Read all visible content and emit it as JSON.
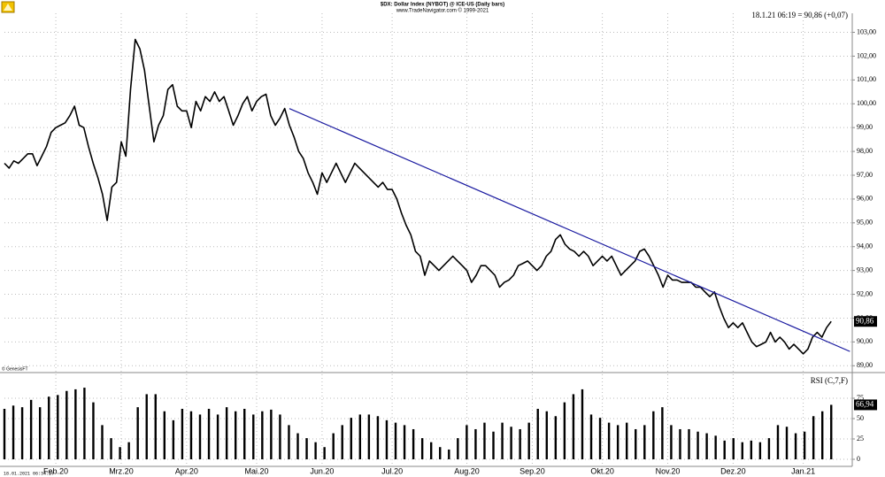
{
  "chart_data": [
    {
      "type": "line",
      "title": "$DX: Dollar Index (NYBOT) @ ICE-US  (Daily bars)",
      "subtitle": "www.TradeNavigator.com © 1999-2021",
      "info": "18.1.21 06:19 = 90,86 (+0,07)",
      "source_note": "© GenesisFT",
      "timestamp": "18.01.2021 06:34:27",
      "color": "#000000",
      "values": [
        97.5,
        97.3,
        97.6,
        97.5,
        97.7,
        97.9,
        97.9,
        97.4,
        97.8,
        98.2,
        98.8,
        99.0,
        99.1,
        99.2,
        99.5,
        99.9,
        99.1,
        99.0,
        98.2,
        97.5,
        96.9,
        96.2,
        95.1,
        96.5,
        96.7,
        98.4,
        97.8,
        100.6,
        102.7,
        102.3,
        101.4,
        99.9,
        98.4,
        99.1,
        99.5,
        100.6,
        100.8,
        99.9,
        99.7,
        99.7,
        99.0,
        100.1,
        99.7,
        100.3,
        100.1,
        100.5,
        100.1,
        100.3,
        99.7,
        99.1,
        99.5,
        100.0,
        100.3,
        99.7,
        100.1,
        100.3,
        100.4,
        99.5,
        99.1,
        99.4,
        99.8,
        99.1,
        98.6,
        98.0,
        97.7,
        97.1,
        96.7,
        96.2,
        97.1,
        96.7,
        97.1,
        97.5,
        97.1,
        96.7,
        97.1,
        97.5,
        97.3,
        97.1,
        96.9,
        96.7,
        96.5,
        96.7,
        96.4,
        96.4,
        96.0,
        95.4,
        94.9,
        94.5,
        93.8,
        93.6,
        92.8,
        93.4,
        93.2,
        93.0,
        93.2,
        93.4,
        93.6,
        93.4,
        93.2,
        93.0,
        92.5,
        92.8,
        93.2,
        93.2,
        93.0,
        92.8,
        92.3,
        92.5,
        92.6,
        92.8,
        93.2,
        93.3,
        93.4,
        93.2,
        93.0,
        93.2,
        93.6,
        93.8,
        94.3,
        94.5,
        94.1,
        93.9,
        93.8,
        93.6,
        93.8,
        93.6,
        93.2,
        93.4,
        93.6,
        93.4,
        93.6,
        93.2,
        92.8,
        93.0,
        93.2,
        93.4,
        93.8,
        93.9,
        93.6,
        93.2,
        92.8,
        92.3,
        92.8,
        92.6,
        92.6,
        92.5,
        92.5,
        92.5,
        92.3,
        92.3,
        92.1,
        91.9,
        92.1,
        91.5,
        91.0,
        90.6,
        90.8,
        90.6,
        90.8,
        90.4,
        90.0,
        89.8,
        89.9,
        90.0,
        90.4,
        90.0,
        90.2,
        90.0,
        89.7,
        89.9,
        89.7,
        89.5,
        89.7,
        90.2,
        90.4,
        90.2,
        90.6,
        90.86
      ],
      "last_value_label": "90,86",
      "trendline": {
        "x": [
          61,
          181
        ],
        "values": [
          99.8,
          89.6
        ],
        "color": "#1a1aa0"
      },
      "xlim": [
        0,
        181.5
      ],
      "xticks": [
        {
          "value": 11,
          "label": "Feb.20"
        },
        {
          "value": 25,
          "label": "Mrz.20"
        },
        {
          "value": 39,
          "label": "Apr.20"
        },
        {
          "value": 54,
          "label": "Mai.20"
        },
        {
          "value": 68,
          "label": "Jun.20"
        },
        {
          "value": 83,
          "label": "Jul.20"
        },
        {
          "value": 99,
          "label": "Aug.20"
        },
        {
          "value": 113,
          "label": "Sep.20"
        },
        {
          "value": 128,
          "label": "Okt.20"
        },
        {
          "value": 142,
          "label": "Nov.20"
        },
        {
          "value": 156,
          "label": "Dez.20"
        },
        {
          "value": 171,
          "label": "Jan.21"
        }
      ],
      "ylim": [
        88.75,
        103.8
      ],
      "yticks": [
        {
          "value": 89,
          "label": "89,00"
        },
        {
          "value": 90,
          "label": "90,00"
        },
        {
          "value": 91,
          "label": "91,00"
        },
        {
          "value": 92,
          "label": "92,00"
        },
        {
          "value": 93,
          "label": "93,00"
        },
        {
          "value": 94,
          "label": "94,00"
        },
        {
          "value": 95,
          "label": "95,00"
        },
        {
          "value": 96,
          "label": "96,00"
        },
        {
          "value": 97,
          "label": "97,00"
        },
        {
          "value": 98,
          "label": "98,00"
        },
        {
          "value": 99,
          "label": "99,00"
        },
        {
          "value": 100,
          "label": "100,00"
        },
        {
          "value": 101,
          "label": "101,00"
        },
        {
          "value": 102,
          "label": "102,00"
        },
        {
          "value": 103,
          "label": "103,00"
        }
      ],
      "grid": true
    },
    {
      "type": "bar",
      "title": "RSI (C,7,F)",
      "color": "#000000",
      "values": [
        62,
        66,
        64,
        73,
        64,
        77,
        79,
        84,
        86,
        88,
        70,
        42,
        26,
        15,
        21,
        64,
        80,
        80,
        59,
        48,
        62,
        59,
        55,
        62,
        55,
        64,
        59,
        62,
        55,
        59,
        61,
        55,
        42,
        32,
        26,
        21,
        15,
        32,
        42,
        51,
        55,
        55,
        53,
        48,
        45,
        42,
        37,
        26,
        21,
        15,
        12,
        26,
        42,
        37,
        45,
        34,
        45,
        40,
        37,
        45,
        62,
        59,
        53,
        70,
        80,
        86,
        55,
        51,
        45,
        42,
        45,
        37,
        42,
        59,
        64,
        42,
        37,
        37,
        34,
        32,
        29,
        23,
        26,
        21,
        23,
        21,
        26,
        42,
        40,
        32,
        34,
        53,
        59,
        66.94
      ],
      "last_value_label": "66,94",
      "ylim": [
        -8.7,
        103.3
      ],
      "yticks": [
        0,
        25,
        50,
        75
      ],
      "grid": true
    }
  ]
}
